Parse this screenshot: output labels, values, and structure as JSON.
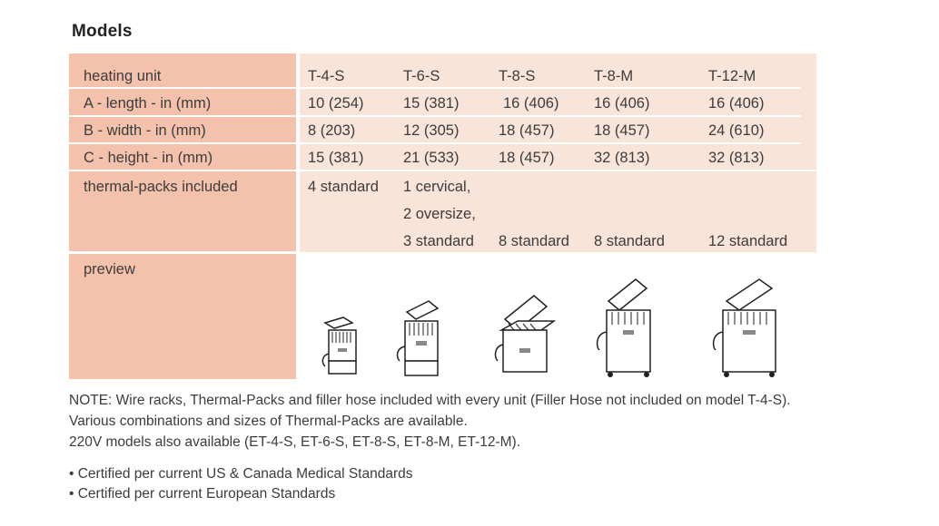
{
  "title": "Models",
  "header": {
    "label": "heating unit",
    "models": [
      "T-4-S",
      "T-6-S",
      "T-8-S",
      "T-8-M",
      "T-12-M"
    ]
  },
  "rows": [
    {
      "label": "A - length - in (mm)",
      "values": [
        "10 (254)",
        "15 (381)",
        "16 (406)",
        "16 (406)",
        "16 (406)"
      ]
    },
    {
      "label": "B - width - in (mm)",
      "values": [
        "8 (203)",
        "12 (305)",
        "18 (457)",
        "18 (457)",
        "24 (610)"
      ]
    },
    {
      "label": "C - height - in (mm)",
      "values": [
        "15 (381)",
        "21 (533)",
        "18 (457)",
        "32 (813)",
        "32 (813)"
      ]
    }
  ],
  "packs": {
    "label": "thermal-packs included",
    "t4s": "4 standard",
    "t6s": [
      "1 cervical,",
      "2 oversize,",
      "3 standard"
    ],
    "t8s": "8 standard",
    "t8m": "8 standard",
    "t12m": "12 standard"
  },
  "preview": {
    "label": "preview"
  },
  "notes": [
    "NOTE: Wire racks, Thermal-Packs and filler hose included with every unit (Filler Hose not included on model T-4-S).",
    "Various combinations and sizes of Thermal-Packs are available.",
    "220V models also available (ET-4-S, ET-6-S, ET-8-S, ET-8-M, ET-12-M)."
  ],
  "certifications": [
    "• Certified per current US & Canada Medical Standards",
    "• Certified per current European Standards"
  ]
}
